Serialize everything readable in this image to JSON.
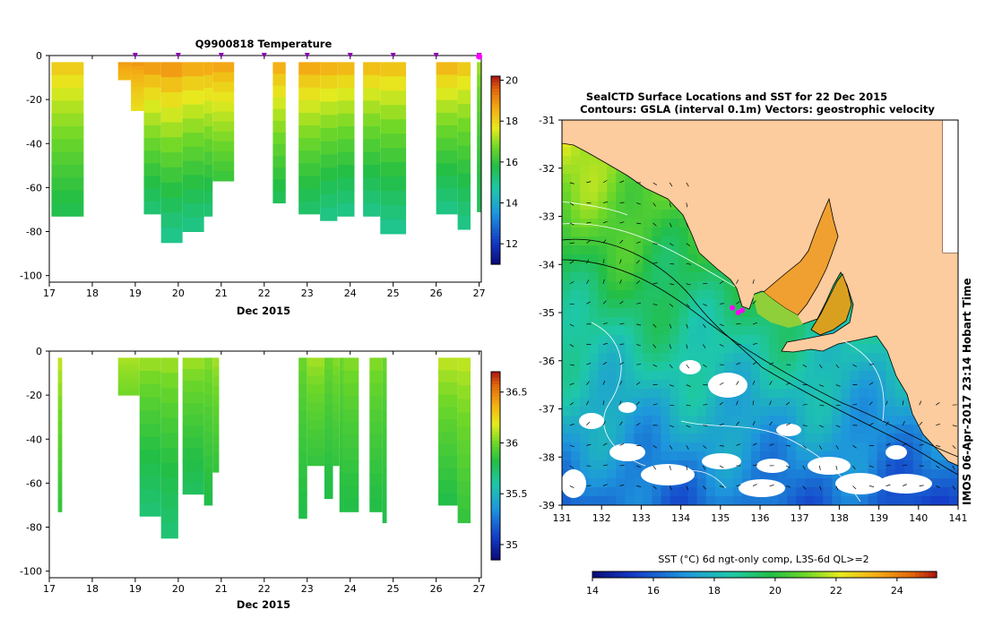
{
  "chart_data": [
    {
      "type": "heatmap",
      "title": "Q9900818  Temperature",
      "xlabel": "Dec 2015",
      "ylabel": "",
      "xlim": [
        17,
        27.05
      ],
      "ylim": [
        -103,
        0
      ],
      "x_ticks": [
        17,
        18,
        19,
        20,
        21,
        22,
        23,
        24,
        25,
        26,
        27
      ],
      "y_ticks": [
        0,
        -20,
        -40,
        -60,
        -80,
        -100
      ],
      "colorbar": {
        "min": 11,
        "max": 20.2,
        "ticks": [
          12,
          14,
          16,
          18,
          20
        ]
      },
      "profile_markers_x": [
        19,
        20,
        21,
        22,
        23,
        24,
        25,
        26,
        27
      ],
      "profiles": [
        {
          "x0": 17.05,
          "x1": 17.8,
          "depth": 73,
          "surface": 18.4,
          "bottom": 15.6
        },
        {
          "x0": 18.6,
          "x1": 18.9,
          "depth": 11,
          "surface": 18.9,
          "bottom": 18.4
        },
        {
          "x0": 18.9,
          "x1": 19.2,
          "depth": 25,
          "surface": 19.0,
          "bottom": 17.8
        },
        {
          "x0": 19.2,
          "x1": 19.6,
          "depth": 72,
          "surface": 19.2,
          "bottom": 15.2
        },
        {
          "x0": 19.6,
          "x1": 20.1,
          "depth": 85,
          "surface": 19.3,
          "bottom": 14.9
        },
        {
          "x0": 20.1,
          "x1": 20.6,
          "depth": 80,
          "surface": 19.0,
          "bottom": 15.0
        },
        {
          "x0": 20.6,
          "x1": 20.8,
          "depth": 73,
          "surface": 19.0,
          "bottom": 15.2
        },
        {
          "x0": 20.8,
          "x1": 21.3,
          "depth": 57,
          "surface": 19.0,
          "bottom": 16.0
        },
        {
          "x0": 22.2,
          "x1": 22.5,
          "depth": 67,
          "surface": 18.9,
          "bottom": 15.5
        },
        {
          "x0": 22.8,
          "x1": 23.3,
          "depth": 72,
          "surface": 19.0,
          "bottom": 15.3
        },
        {
          "x0": 23.3,
          "x1": 23.7,
          "depth": 75,
          "surface": 18.9,
          "bottom": 15.0
        },
        {
          "x0": 23.7,
          "x1": 24.1,
          "depth": 73,
          "surface": 18.8,
          "bottom": 15.0
        },
        {
          "x0": 24.3,
          "x1": 24.7,
          "depth": 73,
          "surface": 18.7,
          "bottom": 15.0
        },
        {
          "x0": 24.7,
          "x1": 25.3,
          "depth": 81,
          "surface": 18.6,
          "bottom": 14.9
        },
        {
          "x0": 26.0,
          "x1": 26.5,
          "depth": 72,
          "surface": 18.8,
          "bottom": 15.0
        },
        {
          "x0": 26.5,
          "x1": 26.8,
          "depth": 79,
          "surface": 18.5,
          "bottom": 15.0
        },
        {
          "x0": 26.95,
          "x1": 27.05,
          "depth": 71,
          "surface": 17.2,
          "bottom": 15.5
        }
      ]
    },
    {
      "type": "heatmap",
      "title": "",
      "xlabel": "Dec 2015",
      "ylabel": "",
      "xlim": [
        17,
        27.05
      ],
      "ylim": [
        -103,
        0
      ],
      "x_ticks": [
        17,
        18,
        19,
        20,
        21,
        22,
        23,
        24,
        25,
        26,
        27
      ],
      "y_ticks": [
        0,
        -20,
        -40,
        -60,
        -80,
        -100
      ],
      "colorbar": {
        "min": 34.85,
        "max": 36.7,
        "ticks": [
          35,
          35.5,
          36,
          36.5
        ]
      },
      "profiles": [
        {
          "x0": 17.2,
          "x1": 17.3,
          "depth": 73,
          "surface": 36.15,
          "bottom": 35.85
        },
        {
          "x0": 18.6,
          "x1": 19.1,
          "depth": 20,
          "surface": 36.1,
          "bottom": 36.0
        },
        {
          "x0": 19.1,
          "x1": 19.6,
          "depth": 75,
          "surface": 36.1,
          "bottom": 35.7
        },
        {
          "x0": 19.6,
          "x1": 20.0,
          "depth": 85,
          "surface": 36.1,
          "bottom": 35.7
        },
        {
          "x0": 20.1,
          "x1": 20.6,
          "depth": 65,
          "surface": 36.1,
          "bottom": 35.75
        },
        {
          "x0": 20.6,
          "x1": 20.8,
          "depth": 70,
          "surface": 36.05,
          "bottom": 35.8
        },
        {
          "x0": 20.8,
          "x1": 20.95,
          "depth": 55,
          "surface": 36.1,
          "bottom": 35.85
        },
        {
          "x0": 22.8,
          "x1": 23.0,
          "depth": 76,
          "surface": 36.0,
          "bottom": 35.8
        },
        {
          "x0": 23.0,
          "x1": 23.4,
          "depth": 52,
          "surface": 36.1,
          "bottom": 35.85
        },
        {
          "x0": 23.4,
          "x1": 23.6,
          "depth": 67,
          "surface": 36.0,
          "bottom": 35.8
        },
        {
          "x0": 23.6,
          "x1": 23.75,
          "depth": 52,
          "surface": 36.05,
          "bottom": 35.85
        },
        {
          "x0": 23.75,
          "x1": 23.85,
          "depth": 73,
          "surface": 36.0,
          "bottom": 35.8
        },
        {
          "x0": 23.85,
          "x1": 24.2,
          "depth": 73,
          "surface": 36.05,
          "bottom": 35.8
        },
        {
          "x0": 24.45,
          "x1": 24.75,
          "depth": 73,
          "surface": 36.05,
          "bottom": 35.8
        },
        {
          "x0": 24.75,
          "x1": 24.85,
          "depth": 78,
          "surface": 36.0,
          "bottom": 35.8
        },
        {
          "x0": 26.05,
          "x1": 26.5,
          "depth": 70,
          "surface": 36.15,
          "bottom": 35.8
        },
        {
          "x0": 26.5,
          "x1": 26.8,
          "depth": 78,
          "surface": 36.15,
          "bottom": 35.85
        }
      ]
    },
    {
      "type": "heatmap",
      "title": "SealCTD Surface Locations and SST for 22 Dec 2015",
      "subtitle": "Contours: GSLA (interval 0.1m) Vectors: geostrophic velocity",
      "xlabel": "",
      "ylabel": "",
      "xlim": [
        131,
        141
      ],
      "ylim": [
        -39,
        -31
      ],
      "x_ticks": [
        131,
        132,
        133,
        134,
        135,
        136,
        137,
        138,
        139,
        140,
        141
      ],
      "y_ticks": [
        -31,
        -32,
        -33,
        -34,
        -35,
        -36,
        -37,
        -38,
        -39
      ],
      "colorbar": {
        "label": "SST (°C) 6d ngt-only comp, L3S-6d QL>=2",
        "min": 14,
        "max": 25.3,
        "ticks": [
          14,
          16,
          18,
          20,
          22,
          24
        ]
      },
      "seal_locations": [
        {
          "x": 135.3,
          "y": -34.9
        },
        {
          "x": 135.45,
          "y": -35.0
        },
        {
          "x": 135.55,
          "y": -34.95
        }
      ],
      "side_label": "IMOS 06-Apr-2017 23:14 Hobart Time",
      "colors": {
        "land": "#fccb9e",
        "seal_marker": "#ff00ff",
        "profile_marker": "#8b00b4"
      }
    }
  ]
}
